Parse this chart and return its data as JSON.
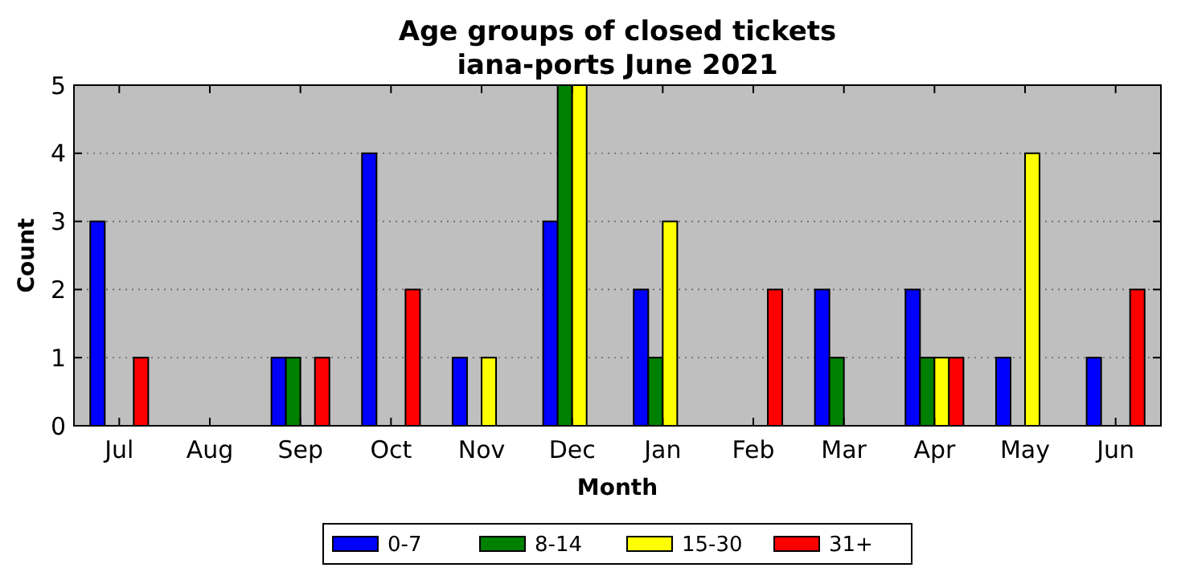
{
  "chart_data": {
    "type": "bar",
    "title": "Age groups of closed tickets\niana-ports June 2021",
    "xlabel": "Month",
    "ylabel": "Count",
    "categories": [
      "Jul",
      "Aug",
      "Sep",
      "Oct",
      "Nov",
      "Dec",
      "Jan",
      "Feb",
      "Mar",
      "Apr",
      "May",
      "Jun"
    ],
    "series": [
      {
        "name": "0-7",
        "color": "#0000ff",
        "values": [
          3,
          0,
          1,
          4,
          1,
          3,
          2,
          0,
          2,
          2,
          1,
          1
        ]
      },
      {
        "name": "8-14",
        "color": "#008000",
        "values": [
          0,
          0,
          1,
          0,
          0,
          5,
          1,
          0,
          1,
          1,
          0,
          0
        ]
      },
      {
        "name": "15-30",
        "color": "#ffff00",
        "values": [
          0,
          0,
          0,
          0,
          1,
          5,
          3,
          0,
          0,
          1,
          4,
          0
        ]
      },
      {
        "name": "31+",
        "color": "#ff0000",
        "values": [
          1,
          0,
          1,
          2,
          0,
          0,
          0,
          2,
          0,
          1,
          0,
          2
        ]
      }
    ],
    "ylim": [
      0,
      5
    ],
    "yticks": [
      0,
      1,
      2,
      3,
      4,
      5
    ],
    "grid": "y",
    "legend": "bottom"
  }
}
